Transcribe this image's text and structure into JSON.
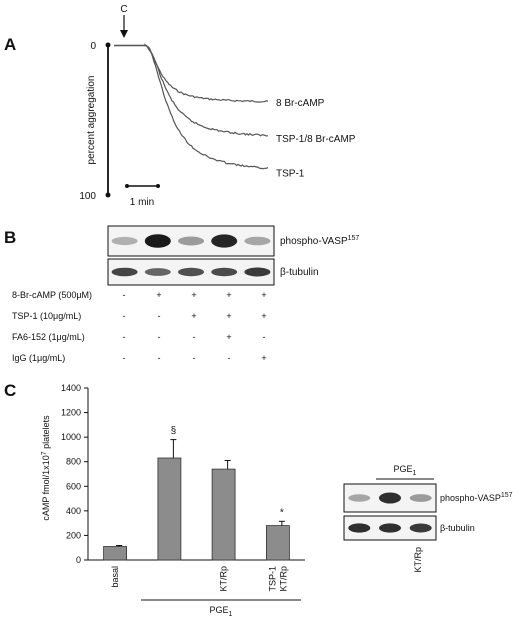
{
  "panel_a": {
    "letter": "A",
    "marker_label": "C",
    "ylabel": "percent aggregation",
    "y_ticks": [
      "0",
      "100"
    ],
    "scale_label": "1 min",
    "traces": [
      {
        "name": "8 Br-cAMP",
        "plateau_percent": 38
      },
      {
        "name": "TSP-1/8 Br-cAMP",
        "plateau_percent": 62
      },
      {
        "name": "TSP-1",
        "plateau_percent": 85
      }
    ]
  },
  "panel_b": {
    "letter": "B",
    "blot_labels": {
      "top_prefix": "phospho-VASP",
      "top_sup": "157",
      "bottom": "β-tubulin"
    },
    "conditions": [
      {
        "label": "8-Br-cAMP (500μM)",
        "values": [
          "-",
          "+",
          "+",
          "+",
          "+"
        ]
      },
      {
        "label": "TSP-1 (10μg/mL)",
        "values": [
          "-",
          "-",
          "+",
          "+",
          "+"
        ]
      },
      {
        "label": "FA6-152 (1μg/mL)",
        "values": [
          "-",
          "-",
          "-",
          "+",
          "-"
        ]
      },
      {
        "label": "IgG (1μg/mL)",
        "values": [
          "-",
          "-",
          "-",
          "-",
          "+"
        ]
      }
    ],
    "band_intensity_top": [
      0.25,
      0.95,
      0.35,
      0.9,
      0.3
    ],
    "band_intensity_bottom": [
      0.75,
      0.6,
      0.7,
      0.72,
      0.8
    ]
  },
  "panel_c": {
    "letter": "C",
    "chart_data": {
      "type": "bar",
      "ylabel_prefix": "cAMP fmol/1x10",
      "ylabel_sup": "7",
      "ylabel_suffix": " platelets",
      "ylim": [
        0,
        1400
      ],
      "y_ticks": [
        "0",
        "200",
        "400",
        "600",
        "800",
        "1000",
        "1200",
        "1400"
      ],
      "categories": [
        "basal",
        "",
        "KT/Rp",
        "TSP-1 KT/Rp"
      ],
      "category_lines": [
        [
          "basal"
        ],
        [],
        [
          "KT/Rp"
        ],
        [
          "TSP-1",
          "KT/Rp"
        ]
      ],
      "values": [
        110,
        830,
        740,
        280
      ],
      "errors": [
        8,
        150,
        70,
        35
      ],
      "annotations": [
        "",
        "§",
        "",
        "*"
      ],
      "group_label_prefix": "PGE",
      "group_label_sub": "1"
    },
    "inset_blot": {
      "group_label_prefix": "PGE",
      "group_label_sub": "1",
      "top_prefix": "phospho-VASP",
      "top_sup": "157",
      "bottom": "β-tubulin",
      "lane_label": "KT/Rp",
      "band_intensity_top": [
        0.3,
        0.85,
        0.35
      ],
      "band_intensity_bottom": [
        0.85,
        0.85,
        0.8
      ]
    }
  }
}
